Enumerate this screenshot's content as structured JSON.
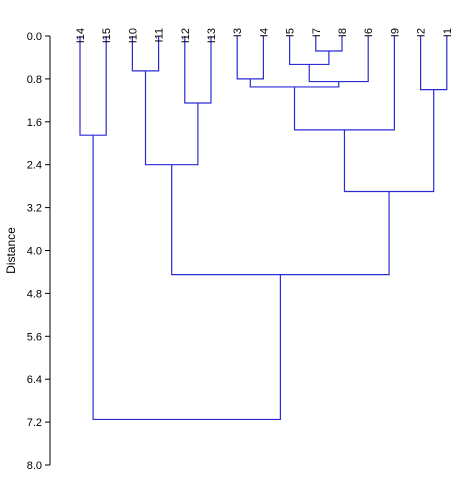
{
  "chart_data": {
    "type": "dendrogram",
    "orientation": "top-down",
    "ylabel": "Distance",
    "ylim": [
      0.0,
      8.0
    ],
    "y_ticks": [
      "0.0",
      "0.8",
      "1.6",
      "2.4",
      "3.2",
      "4.0",
      "4.8",
      "5.6",
      "6.4",
      "7.2",
      "8.0"
    ],
    "leaves": [
      "I14",
      "I15",
      "I10",
      "I11",
      "I12",
      "I13",
      "I3",
      "I4",
      "I5",
      "I7",
      "I8",
      "I6",
      "I9",
      "I2",
      "I1"
    ],
    "merges": [
      {
        "id": "m1",
        "left": "I7",
        "right": "I8",
        "height": 0.28
      },
      {
        "id": "m2",
        "left": "I5",
        "right": "m1",
        "height": 0.53
      },
      {
        "id": "m3",
        "left": "I10",
        "right": "I11",
        "height": 0.65
      },
      {
        "id": "m4",
        "left": "I3",
        "right": "I4",
        "height": 0.8
      },
      {
        "id": "m5",
        "left": "m2",
        "right": "I6",
        "height": 0.85
      },
      {
        "id": "m6",
        "left": "m4",
        "right": "m5",
        "height": 0.95
      },
      {
        "id": "m7",
        "left": "I2",
        "right": "I1",
        "height": 1.0
      },
      {
        "id": "m8",
        "left": "I12",
        "right": "I13",
        "height": 1.25
      },
      {
        "id": "m9",
        "left": "m6",
        "right": "I9",
        "height": 1.75
      },
      {
        "id": "m10",
        "left": "I14",
        "right": "I15",
        "height": 1.85
      },
      {
        "id": "m11",
        "left": "m3",
        "right": "m8",
        "height": 2.4
      },
      {
        "id": "m12",
        "left": "m9",
        "right": "m7",
        "height": 2.9
      },
      {
        "id": "m13",
        "left": "m11",
        "right": "m12",
        "height": 4.45
      },
      {
        "id": "m14",
        "left": "m10",
        "right": "m13",
        "height": 7.15
      }
    ],
    "line_color": "#2b2bd4",
    "grid": false
  }
}
